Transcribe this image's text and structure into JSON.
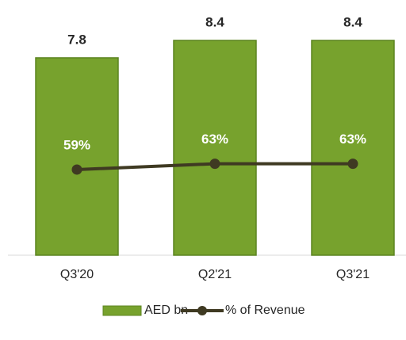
{
  "chart_data": {
    "type": "bar",
    "categories": [
      "Q3'20",
      "Q2'21",
      "Q3'21"
    ],
    "series": [
      {
        "name": "AED bn",
        "type": "bar",
        "color": "#77a22d",
        "values": [
          7.8,
          8.4,
          8.4
        ]
      },
      {
        "name": "% of Revenue",
        "type": "line",
        "axis": "y2",
        "color": "#3f3a22",
        "values": [
          59,
          63,
          63
        ],
        "value_labels": [
          "59%",
          "63%",
          "63%"
        ]
      }
    ],
    "ylim": [
      1,
      9
    ],
    "y2lim": [
      0,
      160
    ],
    "legend": "bottom"
  }
}
